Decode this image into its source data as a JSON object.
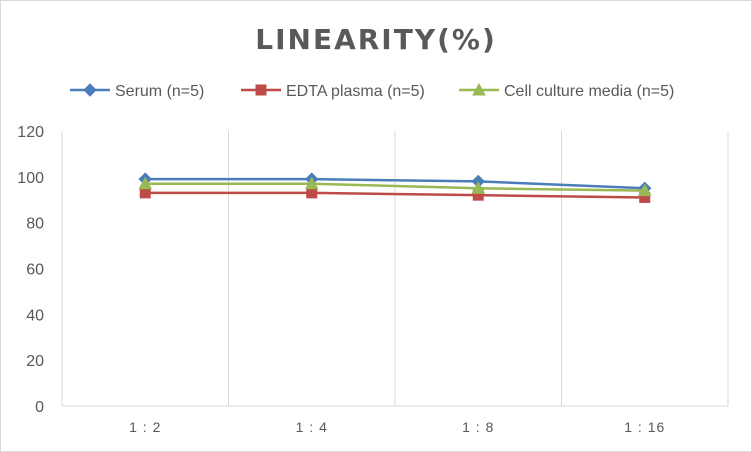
{
  "chart_data": {
    "type": "line",
    "title": "LINEARITY(%)",
    "xlabel": "",
    "ylabel": "",
    "categories": [
      "1:2",
      "1:4",
      "1:8",
      "1:16"
    ],
    "ylim": [
      0,
      120
    ],
    "yticks": [
      0,
      20,
      40,
      60,
      80,
      100,
      120
    ],
    "grid": "vertical",
    "legend_position": "top",
    "series": [
      {
        "name": "Serum (n=5)",
        "values": [
          99,
          99,
          98,
          95
        ],
        "color": "#4a7ebb",
        "marker": "diamond"
      },
      {
        "name": "EDTA plasma (n=5)",
        "values": [
          93,
          93,
          92,
          91
        ],
        "color": "#be4b48",
        "marker": "square"
      },
      {
        "name": "Cell culture media (n=5)",
        "values": [
          97,
          97,
          95,
          94
        ],
        "color": "#98b954",
        "marker": "triangle"
      }
    ]
  }
}
